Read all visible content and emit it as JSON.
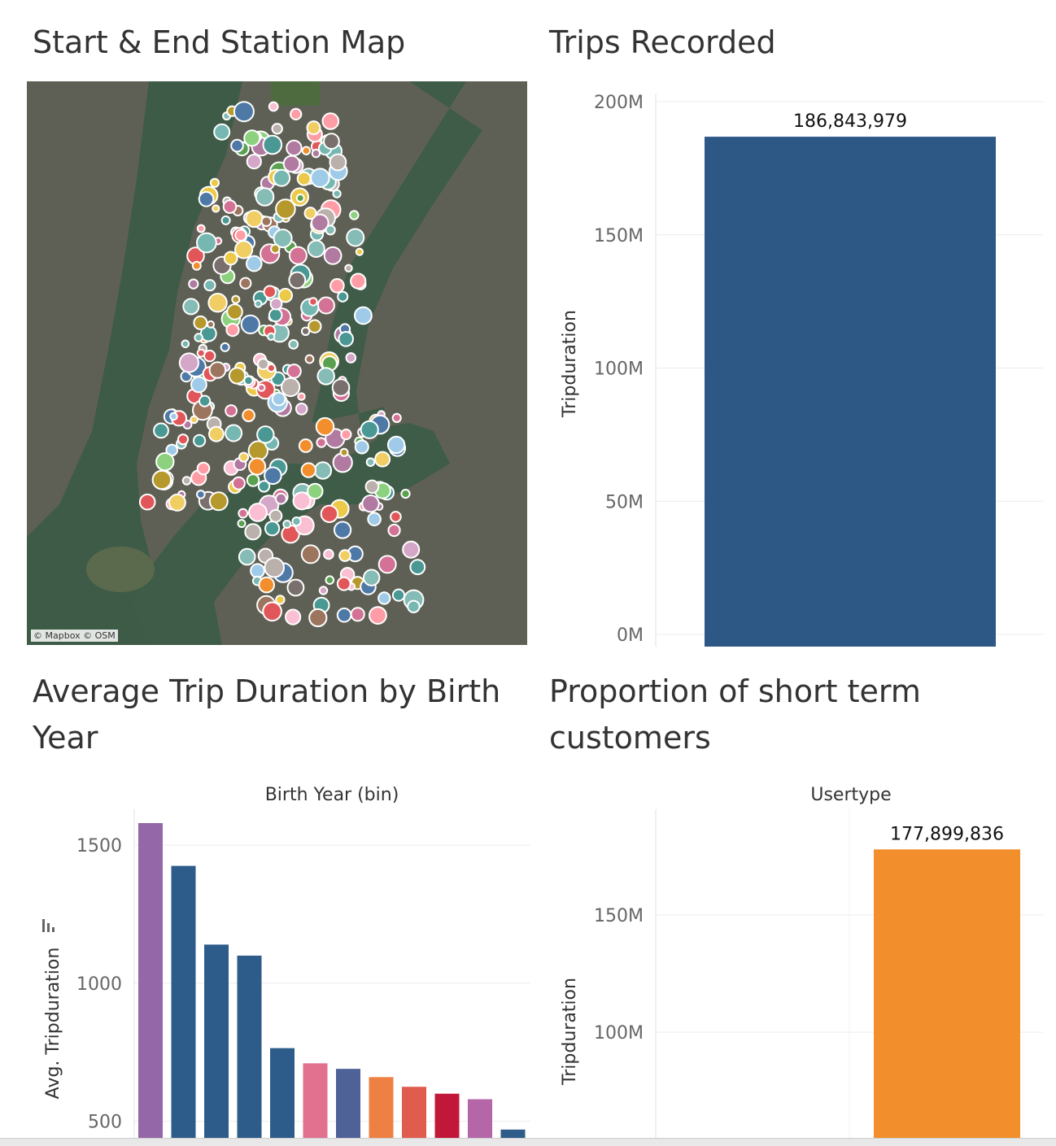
{
  "panels": {
    "map": {
      "title": "Start & End Station Map",
      "attribution": "© Mapbox © OSM"
    },
    "trips": {
      "title": "Trips Recorded"
    },
    "birth": {
      "title_line1": "Average Trip Duration by Birth",
      "title_line2": "Year"
    },
    "usertype": {
      "title_line1": "Proportion of short term",
      "title_line2": "customers"
    }
  },
  "colors": {
    "trips_bar": "#2d5886",
    "usertype_bar": "#f28e2b",
    "gridline": "#ececec",
    "water": "#3d5a4a",
    "land": "#6b6a60"
  },
  "station_palette": [
    "#4e79a7",
    "#f28e2b",
    "#e15759",
    "#76b7b2",
    "#59a14f",
    "#edc948",
    "#b07aa1",
    "#ff9da7",
    "#9c755f",
    "#bab0ac",
    "#a0cbe8",
    "#8cd17d",
    "#d4a6c8",
    "#f1ce63",
    "#86bcb6",
    "#d37295",
    "#fabfd2",
    "#b6992d",
    "#499894",
    "#79706e"
  ],
  "chart_data": [
    {
      "type": "bar",
      "title": "Trips Recorded",
      "categories": [
        ""
      ],
      "values": [
        186843979
      ],
      "data_labels": [
        "186,843,979"
      ],
      "ylabel": "Tripduration",
      "ylim": [
        0,
        200000000
      ],
      "yticks": [
        0,
        50000000,
        100000000,
        150000000,
        200000000
      ],
      "ytick_labels": [
        "0M",
        "50M",
        "100M",
        "150M",
        "200M"
      ],
      "colors": [
        "#2d5886"
      ],
      "grid": true
    },
    {
      "type": "bar",
      "title": "Average Trip Duration by Birth Year",
      "column_header": "Birth Year (bin)",
      "ylabel": "Avg. Tripduration",
      "values": [
        1580,
        1425,
        1140,
        1100,
        765,
        710,
        690,
        660,
        625,
        600,
        580,
        470
      ],
      "colors": [
        "#9467a8",
        "#2e5c8a",
        "#2e5c8a",
        "#2e5c8a",
        "#2e5c8a",
        "#e1718f",
        "#4f6298",
        "#ef8044",
        "#e05c4e",
        "#c1183a",
        "#b466a8",
        "#2e5c8a"
      ],
      "ylim": [
        440,
        1630
      ],
      "yticks": [
        500,
        1000,
        1500
      ],
      "ytick_labels": [
        "500",
        "1000",
        "1500"
      ],
      "grid": true
    },
    {
      "type": "bar",
      "title": "Proportion of short term customers",
      "column_header": "Usertype",
      "ylabel": "Tripduration",
      "categories": [
        "",
        ""
      ],
      "values": [
        null,
        177899836
      ],
      "data_labels": [
        "",
        "177,899,836"
      ],
      "ylim": [
        55000000,
        195000000
      ],
      "yticks": [
        100000000,
        150000000
      ],
      "ytick_labels": [
        "100M",
        "150M"
      ],
      "colors": [
        "#f28e2b",
        "#f28e2b"
      ],
      "grid": true
    }
  ]
}
